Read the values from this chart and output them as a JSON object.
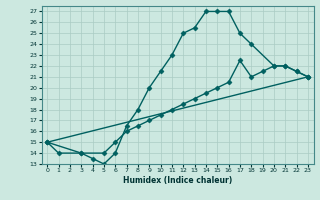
{
  "xlabel": "Humidex (Indice chaleur)",
  "bg_color": "#cce8e0",
  "line_color": "#006060",
  "grid_color": "#aaccc4",
  "ylim": [
    13,
    27.5
  ],
  "xlim": [
    -0.5,
    23.5
  ],
  "yticks": [
    13,
    14,
    15,
    16,
    17,
    18,
    19,
    20,
    21,
    22,
    23,
    24,
    25,
    26,
    27
  ],
  "xticks": [
    0,
    1,
    2,
    3,
    4,
    5,
    6,
    7,
    8,
    9,
    10,
    11,
    12,
    13,
    14,
    15,
    16,
    17,
    18,
    19,
    20,
    21,
    22,
    23
  ],
  "line1_x": [
    0,
    1,
    3,
    4,
    5,
    6,
    7,
    8,
    9,
    10,
    11,
    12,
    13,
    14,
    15,
    16,
    17,
    18,
    20,
    21,
    22,
    23
  ],
  "line1_y": [
    15,
    14,
    14,
    13.5,
    13,
    14,
    16.5,
    18,
    20,
    21.5,
    23,
    25,
    25.5,
    27,
    27,
    27,
    25,
    24,
    22,
    22,
    21.5,
    21
  ],
  "line2_x": [
    0,
    23
  ],
  "line2_y": [
    15,
    21
  ],
  "line3_x": [
    0,
    3,
    5,
    6,
    7,
    8,
    9,
    10,
    11,
    12,
    13,
    14,
    15,
    16,
    17,
    18,
    19,
    20,
    21,
    22,
    23
  ],
  "line3_y": [
    15,
    14,
    14,
    15,
    16,
    16.5,
    17,
    17.5,
    18,
    18.5,
    19,
    19.5,
    20,
    20.5,
    22.5,
    21,
    21.5,
    22,
    22,
    21.5,
    21
  ],
  "marker": "D",
  "markersize": 2.5,
  "linewidth": 1.0
}
